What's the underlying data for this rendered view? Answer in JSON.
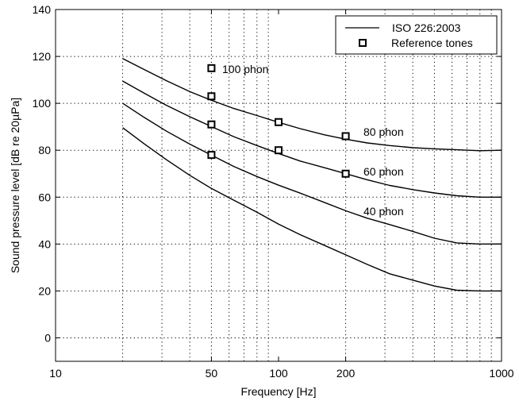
{
  "chart_data": {
    "type": "line",
    "xlabel": "Frequency [Hz]",
    "ylabel": "Sound pressure level [dB re 20µPa]",
    "xscale": "log",
    "xlim": [
      10,
      1000
    ],
    "ylim": [
      -10,
      140
    ],
    "grid": true,
    "legend_position": "top-right",
    "x_ticks": [
      10,
      50,
      100,
      200,
      1000
    ],
    "x_tick_labels": [
      "10",
      "50",
      "100",
      "200",
      "1000"
    ],
    "y_ticks": [
      0,
      20,
      40,
      60,
      80,
      100,
      120,
      140
    ],
    "y_tick_labels": [
      "0",
      "20",
      "40",
      "60",
      "80",
      "100",
      "120",
      "140"
    ],
    "legend": {
      "line_label": "ISO 226:2003",
      "marker_label": "Reference tones"
    },
    "curve_labels": {
      "c80": "80 phon",
      "c60": "60 phon",
      "c40": "40 phon",
      "c100": "100 phon"
    },
    "series": [
      {
        "x": [
          20,
          25,
          31.5,
          40,
          50,
          63,
          80,
          100,
          125,
          160,
          200,
          250,
          315,
          400,
          500,
          630,
          800,
          1000
        ],
        "y": [
          89.6,
          82.7,
          75.9,
          69.3,
          63.7,
          58.7,
          53.6,
          48.5,
          44.0,
          39.5,
          35.4,
          31.3,
          27.3,
          24.6,
          22.1,
          20.3,
          20.0,
          20.0
        ]
      },
      {
        "x": [
          20,
          25,
          31.5,
          40,
          50,
          63,
          80,
          100,
          125,
          160,
          200,
          250,
          315,
          400,
          500,
          630,
          800,
          1000
        ],
        "y": [
          100.0,
          94.0,
          88.1,
          82.6,
          77.9,
          73.1,
          68.8,
          65.1,
          61.7,
          57.8,
          54.2,
          51.0,
          48.3,
          45.4,
          42.5,
          40.5,
          40.0,
          40.0
        ]
      },
      {
        "x": [
          20,
          25,
          31.5,
          40,
          50,
          63,
          80,
          100,
          125,
          160,
          200,
          250,
          315,
          400,
          500,
          630,
          800,
          1000
        ],
        "y": [
          109.5,
          104.3,
          99.1,
          94.3,
          90.1,
          85.8,
          82.0,
          78.6,
          75.4,
          72.6,
          70.0,
          67.4,
          65.0,
          63.2,
          61.8,
          60.6,
          60.0,
          60.0
        ]
      },
      {
        "x": [
          20,
          25,
          31.5,
          40,
          50,
          63,
          80,
          100,
          125,
          160,
          200,
          250,
          315,
          400,
          500,
          630,
          800,
          1000
        ],
        "y": [
          119.1,
          114.4,
          109.6,
          105.0,
          101.3,
          97.8,
          94.8,
          91.9,
          89.2,
          86.6,
          84.7,
          83.1,
          82.0,
          81.1,
          80.6,
          80.2,
          79.8,
          80.0
        ]
      }
    ],
    "markers": [
      {
        "x": 50,
        "y": 115
      },
      {
        "x": 50,
        "y": 103
      },
      {
        "x": 50,
        "y": 91
      },
      {
        "x": 50,
        "y": 78
      },
      {
        "x": 100,
        "y": 92
      },
      {
        "x": 100,
        "y": 80
      },
      {
        "x": 200,
        "y": 86
      },
      {
        "x": 200,
        "y": 70
      }
    ]
  }
}
